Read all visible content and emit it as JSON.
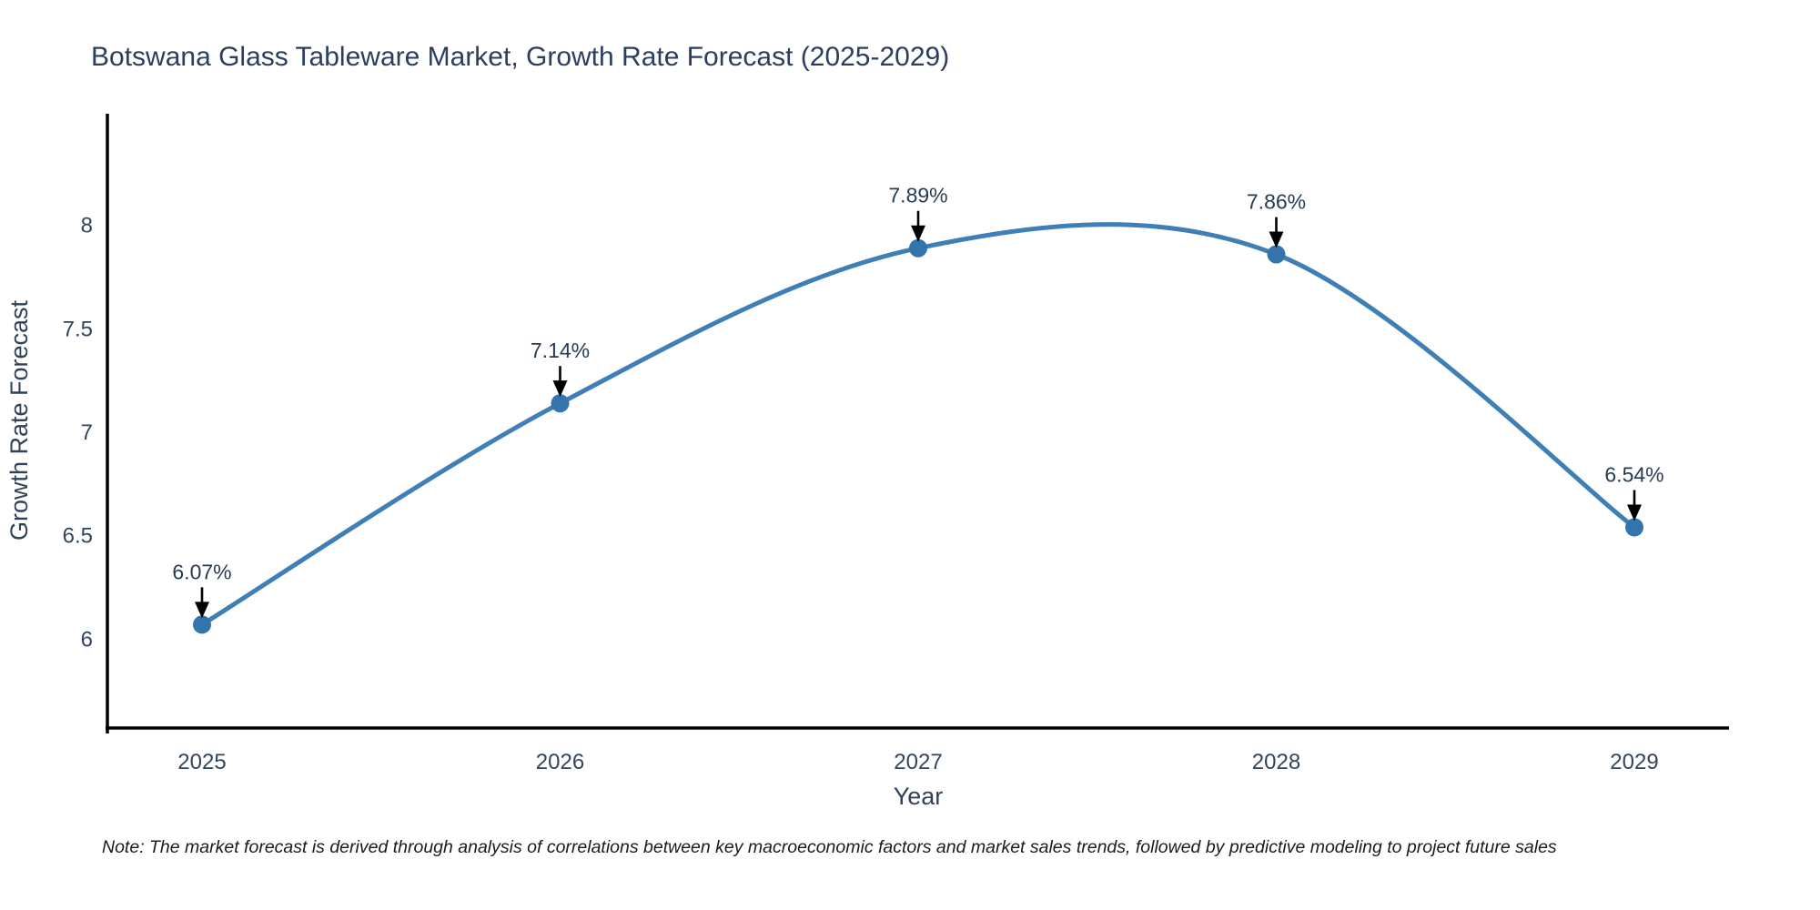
{
  "chart_data": {
    "type": "line",
    "title": "Botswana Glass Tableware Market, Growth Rate Forecast (2025-2029)",
    "x": [
      "2025",
      "2026",
      "2027",
      "2028",
      "2029"
    ],
    "series": [
      {
        "name": "Growth Rate Forecast",
        "values": [
          6.07,
          7.14,
          7.89,
          7.86,
          6.54
        ]
      }
    ],
    "point_labels": [
      "6.07%",
      "7.14%",
      "7.89%",
      "7.86%",
      "6.54%"
    ],
    "xlabel": "Year",
    "ylabel": "Growth Rate Forecast",
    "yticks": [
      6,
      6.5,
      7,
      7.5,
      8
    ],
    "ylim": [
      5.57,
      8.54
    ],
    "line_shape": "spline",
    "grid": false,
    "legend": "none",
    "colors": {
      "line": "#3f7fb5",
      "marker": "#3374ad",
      "annotation_arrow": "#000000",
      "axis_line": "#000000",
      "title_text": "#2c3e5e",
      "tick_text": "#32455e"
    }
  },
  "note": "Note: The market forecast is derived through analysis of correlations between key macroeconomic factors and market sales trends, followed by predictive modeling to project future sales"
}
